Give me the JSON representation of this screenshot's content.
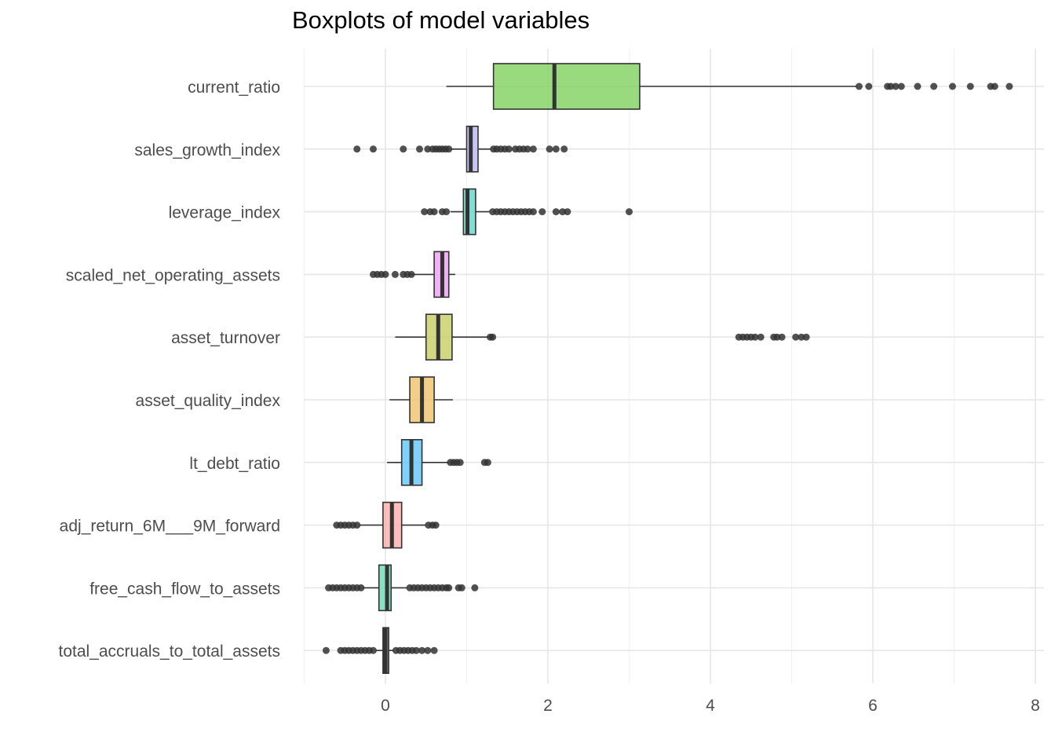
{
  "chart_data": {
    "type": "boxplot",
    "title": "Boxplots of model variables",
    "xlabel": "",
    "ylabel": "",
    "xlim": [
      -1,
      8
    ],
    "x_ticks": [
      0,
      2,
      4,
      6,
      8
    ],
    "grid": true,
    "legend": "none",
    "series": [
      {
        "name": "current_ratio",
        "color": "#7cd05a",
        "whisker_low": 0.75,
        "q1": 1.33,
        "median": 2.08,
        "q3": 3.13,
        "whisker_high": 5.8,
        "outliers": [
          5.83,
          5.95,
          6.18,
          6.22,
          6.28,
          6.35,
          6.55,
          6.75,
          6.98,
          7.2,
          7.45,
          7.5,
          7.68
        ]
      },
      {
        "name": "sales_growth_index",
        "color": "#b9b5f5",
        "whisker_low": 0.8,
        "q1": 1.0,
        "median": 1.05,
        "q3": 1.14,
        "whisker_high": 1.3,
        "outliers": [
          -0.35,
          -0.15,
          0.22,
          0.42,
          0.52,
          0.58,
          0.62,
          0.66,
          0.7,
          0.74,
          0.78,
          1.33,
          1.37,
          1.42,
          1.47,
          1.52,
          1.6,
          1.65,
          1.7,
          1.75,
          1.82,
          2.02,
          2.1,
          2.2
        ]
      },
      {
        "name": "leverage_index",
        "color": "#5ed3c9",
        "whisker_low": 0.8,
        "q1": 0.96,
        "median": 1.01,
        "q3": 1.11,
        "whisker_high": 1.28,
        "outliers": [
          0.48,
          0.55,
          0.6,
          0.7,
          0.75,
          1.32,
          1.37,
          1.42,
          1.47,
          1.52,
          1.57,
          1.62,
          1.67,
          1.72,
          1.77,
          1.82,
          1.93,
          2.1,
          2.18,
          2.24,
          3.0
        ]
      },
      {
        "name": "scaled_net_operating_assets",
        "color": "#ee9cf2",
        "whisker_low": 0.32,
        "q1": 0.6,
        "median": 0.7,
        "q3": 0.78,
        "whisker_high": 0.86,
        "outliers": [
          -0.15,
          -0.1,
          -0.05,
          0.0,
          0.12,
          0.22,
          0.27,
          0.32
        ]
      },
      {
        "name": "asset_turnover",
        "color": "#c5cc5e",
        "whisker_low": 0.12,
        "q1": 0.5,
        "median": 0.65,
        "q3": 0.82,
        "whisker_high": 1.27,
        "outliers": [
          1.29,
          1.32,
          4.35,
          4.4,
          4.45,
          4.5,
          4.55,
          4.62,
          4.78,
          4.82,
          4.88,
          5.05,
          5.12,
          5.18
        ]
      },
      {
        "name": "asset_quality_index",
        "color": "#f0c068",
        "whisker_low": 0.05,
        "q1": 0.3,
        "median": 0.45,
        "q3": 0.6,
        "whisker_high": 0.83,
        "outliers": []
      },
      {
        "name": "lt_debt_ratio",
        "color": "#5cc5f8",
        "whisker_low": 0.02,
        "q1": 0.2,
        "median": 0.32,
        "q3": 0.45,
        "whisker_high": 0.78,
        "outliers": [
          0.8,
          0.84,
          0.88,
          0.92,
          1.22,
          1.26
        ]
      },
      {
        "name": "adj_return_6M___9M_forward",
        "color": "#ffaaa8",
        "whisker_low": -0.32,
        "q1": -0.03,
        "median": 0.08,
        "q3": 0.2,
        "whisker_high": 0.5,
        "outliers": [
          -0.6,
          -0.55,
          -0.5,
          -0.45,
          -0.4,
          -0.35,
          0.53,
          0.58,
          0.62
        ]
      },
      {
        "name": "free_cash_flow_to_assets",
        "color": "#6ad9b4",
        "whisker_low": -0.28,
        "q1": -0.08,
        "median": 0.02,
        "q3": 0.07,
        "whisker_high": 0.27,
        "outliers": [
          -0.7,
          -0.65,
          -0.6,
          -0.55,
          -0.5,
          -0.45,
          -0.4,
          -0.35,
          -0.3,
          0.3,
          0.35,
          0.4,
          0.45,
          0.5,
          0.55,
          0.6,
          0.65,
          0.7,
          0.75,
          0.78,
          0.9,
          0.94,
          1.1
        ]
      },
      {
        "name": "total_accruals_to_total_assets",
        "color": "#6b6b6b",
        "whisker_low": -0.12,
        "q1": -0.03,
        "median": 0.0,
        "q3": 0.04,
        "whisker_high": 0.1,
        "outliers": [
          -0.73,
          -0.55,
          -0.5,
          -0.45,
          -0.4,
          -0.35,
          -0.3,
          -0.25,
          -0.2,
          -0.15,
          0.13,
          0.18,
          0.23,
          0.28,
          0.33,
          0.38,
          0.45,
          0.52,
          0.6
        ]
      }
    ]
  }
}
